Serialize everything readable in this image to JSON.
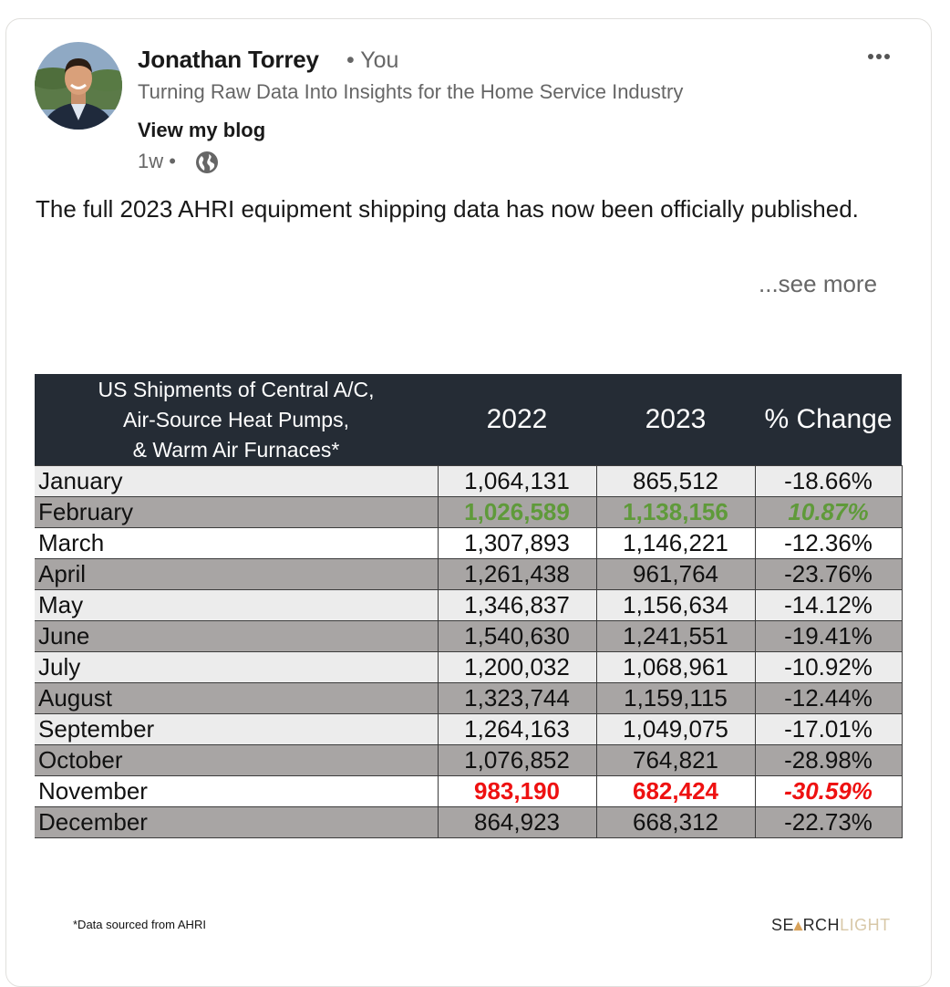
{
  "author": {
    "name": "Jonathan Torrey",
    "relation": "• You",
    "headline": "Turning Raw Data Into Insights for the Home Service Industry",
    "link_label": "View my blog",
    "time": "1w •",
    "visibility_icon": "globe-icon",
    "avatar_icon": "avatar"
  },
  "menu": {
    "icon": "more-horizontal-icon"
  },
  "post": {
    "text": "The full 2023 AHRI equipment shipping data has now been officially published.",
    "see_more": "...see more"
  },
  "image": {
    "table": {
      "title_lines": [
        "US Shipments of Central A/C,",
        "Air-Source Heat Pumps,",
        "& Warm Air Furnaces*"
      ],
      "headers": [
        "2022",
        "2023",
        "% Change"
      ],
      "rows": [
        {
          "month": "January",
          "y2022": "1,064,131",
          "y2023": "865,512",
          "change": "-18.66%",
          "style": "light",
          "highlight": ""
        },
        {
          "month": "February",
          "y2022": "1,026,589",
          "y2023": "1,138,156",
          "change": "10.87%",
          "style": "gray",
          "highlight": "green"
        },
        {
          "month": "March",
          "y2022": "1,307,893",
          "y2023": "1,146,221",
          "change": "-12.36%",
          "style": "white",
          "highlight": ""
        },
        {
          "month": "April",
          "y2022": "1,261,438",
          "y2023": "961,764",
          "change": "-23.76%",
          "style": "gray",
          "highlight": ""
        },
        {
          "month": "May",
          "y2022": "1,346,837",
          "y2023": "1,156,634",
          "change": "-14.12%",
          "style": "light",
          "highlight": ""
        },
        {
          "month": "June",
          "y2022": "1,540,630",
          "y2023": "1,241,551",
          "change": "-19.41%",
          "style": "gray",
          "highlight": ""
        },
        {
          "month": "July",
          "y2022": "1,200,032",
          "y2023": "1,068,961",
          "change": "-10.92%",
          "style": "light",
          "highlight": ""
        },
        {
          "month": "August",
          "y2022": "1,323,744",
          "y2023": "1,159,115",
          "change": "-12.44%",
          "style": "gray",
          "highlight": ""
        },
        {
          "month": "September",
          "y2022": "1,264,163",
          "y2023": "1,049,075",
          "change": "-17.01%",
          "style": "light",
          "highlight": ""
        },
        {
          "month": "October",
          "y2022": "1,076,852",
          "y2023": "764,821",
          "change": "-28.98%",
          "style": "gray",
          "highlight": ""
        },
        {
          "month": "November",
          "y2022": "983,190",
          "y2023": "682,424",
          "change": "-30.59%",
          "style": "white",
          "highlight": "red"
        },
        {
          "month": "December",
          "y2022": "864,923",
          "y2023": "668,312",
          "change": "-22.73%",
          "style": "gray",
          "highlight": ""
        }
      ]
    },
    "source_note": "*Data sourced from AHRI",
    "logo": {
      "part1": "SE",
      "part2": "RCH",
      "part3": "LIGHT"
    },
    "colors": {
      "header_bg": "#252c35",
      "gray_row": "#a8a5a4",
      "light_row": "#ececec",
      "highlight_green": "#5f9a3a",
      "highlight_red": "#ee1111"
    }
  }
}
